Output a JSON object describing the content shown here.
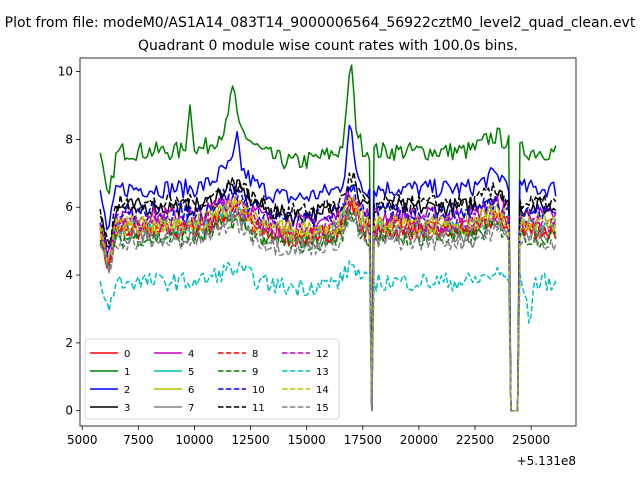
{
  "figure": {
    "suptitle": "Plot from file: modeM0/AS1A14_083T14_9000006564_56922cztM0_level2_quad_clean.evt"
  },
  "chart_data": {
    "type": "line",
    "title": "Quadrant 0 module wise count rates with 100.0s bins.",
    "xlabel": "",
    "ylabel": "",
    "x_offset_label": "+5.131e8",
    "xlim": [
      4900,
      27000
    ],
    "ylim": [
      -0.45,
      10.4
    ],
    "x_ticks": [
      5000,
      7500,
      10000,
      12500,
      15000,
      17500,
      20000,
      22500,
      25000
    ],
    "x_tick_labels": [
      "5000",
      "7500",
      "10000",
      "12500",
      "15000",
      "17500",
      "20000",
      "22500",
      "25000"
    ],
    "y_ticks": [
      0,
      2,
      4,
      6,
      8,
      10
    ],
    "y_tick_labels": [
      "0",
      "2",
      "4",
      "6",
      "8",
      "10"
    ],
    "grid": false,
    "legend_placement": "lower-left",
    "legend_columns": 4,
    "x_start": 5800,
    "x_step": 100,
    "gap_segments": [
      [
        17850,
        17950
      ],
      [
        24050,
        24450
      ]
    ],
    "series": [
      {
        "name": "0",
        "color": "#ff0000",
        "dash": "solid",
        "base": 5.3
      },
      {
        "name": "1",
        "color": "#008000",
        "dash": "solid",
        "base": 7.65
      },
      {
        "name": "2",
        "color": "#0000ff",
        "dash": "solid",
        "base": 6.55
      },
      {
        "name": "3",
        "color": "#000000",
        "dash": "solid",
        "base": 6.0
      },
      {
        "name": "4",
        "color": "#bf00bf",
        "dash": "solid",
        "base": 5.75
      },
      {
        "name": "5",
        "color": "#00bfbf",
        "dash": "solid",
        "base": 5.4
      },
      {
        "name": "6",
        "color": "#bfbf00",
        "dash": "solid",
        "base": 5.55
      },
      {
        "name": "7",
        "color": "#808080",
        "dash": "solid",
        "base": 5.2
      },
      {
        "name": "8",
        "color": "#ff0000",
        "dash": "dashed",
        "base": 5.35
      },
      {
        "name": "9",
        "color": "#008000",
        "dash": "dashed",
        "base": 5.1
      },
      {
        "name": "10",
        "color": "#0000ff",
        "dash": "dashed",
        "base": 5.85
      },
      {
        "name": "11",
        "color": "#000000",
        "dash": "dashed",
        "base": 6.1
      },
      {
        "name": "12",
        "color": "#bf00bf",
        "dash": "dashed",
        "base": 5.5
      },
      {
        "name": "13",
        "color": "#00bfbf",
        "dash": "dashed",
        "base": 3.8
      },
      {
        "name": "14",
        "color": "#bfbf00",
        "dash": "dashed",
        "base": 5.45
      },
      {
        "name": "15",
        "color": "#808080",
        "dash": "dashed",
        "base": 5.0
      }
    ]
  }
}
